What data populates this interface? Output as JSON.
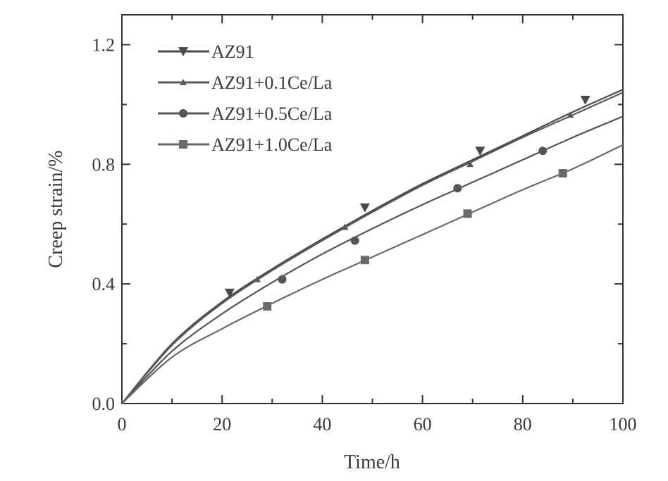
{
  "chart_data": {
    "type": "line",
    "xlabel": "Time/h",
    "ylabel": "Creep strain/%",
    "xlim": [
      0,
      100
    ],
    "ylim": [
      0,
      1.3
    ],
    "xticks": [
      0,
      20,
      40,
      60,
      80,
      100
    ],
    "xtick_labels": [
      "0",
      "20",
      "40",
      "60",
      "80",
      "100"
    ],
    "yticks": [
      0.0,
      0.4,
      0.8,
      1.2
    ],
    "ytick_labels": [
      "0.0",
      "0.4",
      "0.8",
      "1.2"
    ],
    "grid": false,
    "legend_position": "top-left",
    "series": [
      {
        "name": "AZ91",
        "marker": "triangle-down",
        "color": "#4a4a4a",
        "curve": {
          "x": [
            0,
            10,
            20,
            30,
            40,
            50,
            60,
            70,
            80,
            90,
            100
          ],
          "y": [
            0,
            0.2,
            0.34,
            0.45,
            0.55,
            0.645,
            0.735,
            0.815,
            0.895,
            0.975,
            1.05
          ]
        },
        "points": {
          "x": [
            21.5,
            48.5,
            71.5,
            92.5
          ],
          "y": [
            0.37,
            0.655,
            0.845,
            1.015
          ]
        }
      },
      {
        "name": "AZ91+0.1Ce/La",
        "marker": "triangle-up",
        "color": "#5a5a5a",
        "curve": {
          "x": [
            0,
            10,
            20,
            30,
            40,
            50,
            60,
            70,
            80,
            90,
            100
          ],
          "y": [
            0,
            0.195,
            0.335,
            0.445,
            0.545,
            0.64,
            0.73,
            0.81,
            0.89,
            0.965,
            1.04
          ]
        },
        "points": {
          "x": [
            27,
            44.5,
            69.5,
            89.5
          ],
          "y": [
            0.415,
            0.59,
            0.8,
            0.965
          ]
        }
      },
      {
        "name": "AZ91+0.5Ce/La",
        "marker": "circle",
        "color": "#555555",
        "curve": {
          "x": [
            0,
            10,
            20,
            30,
            40,
            50,
            60,
            70,
            80,
            90,
            100
          ],
          "y": [
            0,
            0.175,
            0.3,
            0.405,
            0.5,
            0.585,
            0.665,
            0.74,
            0.815,
            0.89,
            0.96
          ]
        },
        "points": {
          "x": [
            32,
            46.5,
            67,
            84
          ],
          "y": [
            0.415,
            0.545,
            0.72,
            0.845
          ]
        }
      },
      {
        "name": "AZ91+1.0Ce/La",
        "marker": "square",
        "color": "#6a6a6a",
        "curve": {
          "x": [
            0,
            10,
            20,
            30,
            40,
            50,
            60,
            70,
            80,
            90,
            100
          ],
          "y": [
            0,
            0.155,
            0.25,
            0.335,
            0.415,
            0.49,
            0.565,
            0.64,
            0.715,
            0.785,
            0.865
          ]
        },
        "points": {
          "x": [
            29,
            48.5,
            69,
            88
          ],
          "y": [
            0.325,
            0.48,
            0.635,
            0.77
          ]
        }
      }
    ]
  }
}
